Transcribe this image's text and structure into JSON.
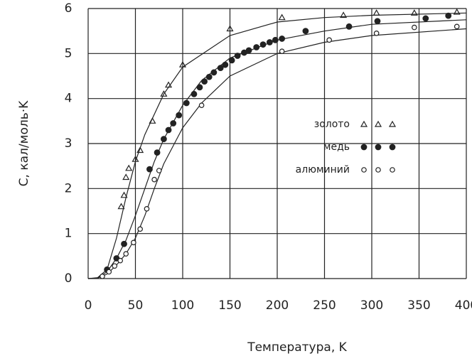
{
  "chart_data": {
    "type": "scatter",
    "x_label": "Температура, K",
    "y_label": "C, кал/моль·K",
    "xlim": [
      0,
      400
    ],
    "ylim": [
      0,
      6
    ],
    "xticks": [
      0,
      50,
      100,
      150,
      200,
      250,
      300,
      350,
      400
    ],
    "yticks": [
      0,
      1,
      2,
      3,
      4,
      5,
      6
    ],
    "grid": true,
    "series": [
      {
        "name": "золото",
        "color": "#222222",
        "marker": "triangle",
        "x": [
          35,
          38,
          40,
          43,
          50,
          55,
          68,
          80,
          85,
          100,
          150,
          205,
          270,
          305,
          345,
          390
        ],
        "values": [
          1.6,
          1.85,
          2.25,
          2.45,
          2.65,
          2.85,
          3.5,
          4.1,
          4.3,
          4.75,
          5.55,
          5.8,
          5.85,
          5.9,
          5.9,
          5.92
        ],
        "curve": {
          "x": [
            0,
            10,
            20,
            30,
            40,
            50,
            60,
            80,
            100,
            150,
            200,
            250,
            300,
            400
          ],
          "values": [
            0,
            0.02,
            0.2,
            0.9,
            1.8,
            2.6,
            3.2,
            4.1,
            4.7,
            5.4,
            5.7,
            5.8,
            5.85,
            5.9
          ]
        }
      },
      {
        "name": "медь",
        "color": "#222222",
        "marker": "filled-circle",
        "x": [
          20,
          30,
          38,
          65,
          73,
          80,
          85,
          90,
          96,
          104,
          112,
          118,
          123,
          128,
          133,
          140,
          145,
          152,
          158,
          165,
          170,
          178,
          185,
          192,
          198,
          205,
          230,
          276,
          306,
          357,
          381
        ],
        "values": [
          0.2,
          0.45,
          0.77,
          2.43,
          2.8,
          3.1,
          3.3,
          3.45,
          3.63,
          3.9,
          4.1,
          4.25,
          4.38,
          4.48,
          4.58,
          4.68,
          4.75,
          4.85,
          4.95,
          5.02,
          5.07,
          5.14,
          5.2,
          5.25,
          5.3,
          5.33,
          5.5,
          5.6,
          5.72,
          5.78,
          5.84
        ],
        "curve": {
          "x": [
            0,
            10,
            20,
            30,
            40,
            50,
            60,
            70,
            80,
            100,
            120,
            150,
            200,
            250,
            300,
            400
          ],
          "values": [
            0,
            0.01,
            0.15,
            0.45,
            0.85,
            1.4,
            2.0,
            2.6,
            3.1,
            3.85,
            4.4,
            4.9,
            5.3,
            5.5,
            5.65,
            5.75
          ]
        }
      },
      {
        "name": "алюминий",
        "color": "#222222",
        "marker": "open-circle",
        "x": [
          15,
          22,
          28,
          34,
          40,
          48,
          55,
          62,
          70,
          75,
          120,
          205,
          255,
          305,
          345,
          390
        ],
        "values": [
          0.05,
          0.15,
          0.28,
          0.4,
          0.55,
          0.8,
          1.1,
          1.55,
          2.2,
          2.4,
          3.85,
          5.05,
          5.3,
          5.45,
          5.58,
          5.6
        ],
        "curve": {
          "x": [
            0,
            10,
            20,
            30,
            40,
            50,
            60,
            70,
            80,
            100,
            120,
            150,
            200,
            250,
            300,
            400
          ],
          "values": [
            0,
            0.01,
            0.1,
            0.3,
            0.55,
            0.9,
            1.4,
            2.0,
            2.55,
            3.35,
            3.9,
            4.5,
            5.0,
            5.25,
            5.4,
            5.55
          ]
        }
      }
    ]
  }
}
